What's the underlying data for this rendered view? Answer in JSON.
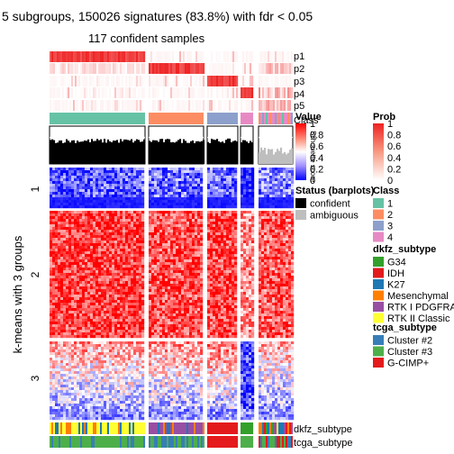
{
  "title": "5 subgroups, 150026 signatures (83.8%) with fdr < 0.05",
  "subtitle": "117 confident samples",
  "row_title": "k-means with 3 groups",
  "row_slice_labels": [
    "1",
    "2",
    "3"
  ],
  "annotation_labels": {
    "p1": "p1",
    "p2": "p2",
    "p3": "p3",
    "p4": "p4",
    "p5": "p5",
    "class": "Class",
    "silhouette": "Silhouette score",
    "dkfz": "dkfz_subtype",
    "tcga": "tcga_subtype"
  },
  "legends": {
    "value": {
      "title": "Value",
      "ticks": [
        "1",
        "0.8",
        "0.6",
        "0.4",
        "0.2",
        "0"
      ],
      "colors": [
        "#ff0000",
        "#ffd4c8",
        "#ffffff",
        "#d8d0ff",
        "#0000ff"
      ]
    },
    "prob": {
      "title": "Prob",
      "ticks": [
        "1",
        "0.8",
        "0.6",
        "0.4",
        "0.2",
        "0"
      ],
      "colors": [
        "#ee2222",
        "#fbd4c6",
        "#ffffff"
      ]
    },
    "status": {
      "title": "Status (barplots)",
      "items": [
        {
          "label": "confident",
          "color": "#000000"
        },
        {
          "label": "ambiguous",
          "color": "#bebebe"
        }
      ]
    },
    "class": {
      "title": "Class",
      "items": [
        {
          "label": "1",
          "color": "#66c2a5"
        },
        {
          "label": "2",
          "color": "#fc8d62"
        },
        {
          "label": "3",
          "color": "#8da0cb"
        },
        {
          "label": "4",
          "color": "#e78ac3"
        }
      ]
    },
    "dkfz": {
      "title": "dkfz_subtype",
      "items": [
        {
          "label": "G34",
          "color": "#33a02c"
        },
        {
          "label": "IDH",
          "color": "#e31a1c"
        },
        {
          "label": "K27",
          "color": "#1f78b4"
        },
        {
          "label": "Mesenchymal",
          "color": "#ff7f00"
        },
        {
          "label": "RTK I PDGFRA",
          "color": "#984ea3"
        },
        {
          "label": "RTK II Classic",
          "color": "#ffff33"
        }
      ]
    },
    "tcga": {
      "title": "tcga_subtype",
      "items": [
        {
          "label": "Cluster #2",
          "color": "#377eb8"
        },
        {
          "label": "Cluster #3",
          "color": "#4daf4a"
        },
        {
          "label": "G-CIMP+",
          "color": "#e41a1c"
        }
      ]
    }
  },
  "chart_data": {
    "type": "heatmap",
    "samples_confident": 117,
    "column_groups": [
      {
        "class": "1",
        "samples": 48
      },
      {
        "class": "2",
        "samples": 28
      },
      {
        "class": "3",
        "samples": 17
      },
      {
        "class": "4",
        "samples": 6
      },
      {
        "class": "4-ambiguous",
        "samples": 18
      }
    ],
    "row_groups": [
      {
        "label": "1",
        "share": 0.16
      },
      {
        "label": "2",
        "share": 0.54
      },
      {
        "label": "3",
        "share": 0.3
      }
    ],
    "silhouette_ylim": [
      0,
      1
    ],
    "value_range": [
      0,
      1
    ]
  }
}
